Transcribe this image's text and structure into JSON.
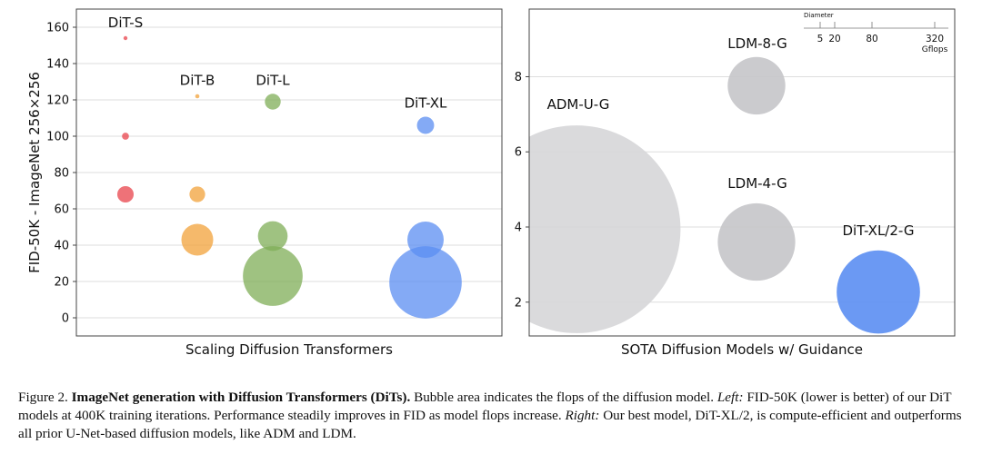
{
  "chart_data": [
    {
      "type": "scatter",
      "subtype": "bubble",
      "xlabel": "Scaling Diffusion Transformers",
      "ylabel": "FID-50K - ImageNet 256×256",
      "ylim": [
        -10,
        170
      ],
      "yticks": [
        0,
        20,
        40,
        60,
        80,
        100,
        120,
        140,
        160
      ],
      "grid": true,
      "series": [
        {
          "name": "DiT-S",
          "color": "#e8434b",
          "points": [
            {
              "y": 154,
              "gflops": 0.1
            },
            {
              "y": 100,
              "gflops": 1.1
            },
            {
              "y": 68,
              "gflops": 6.1
            }
          ]
        },
        {
          "name": "DiT-B",
          "color": "#f2a23a",
          "points": [
            {
              "y": 122,
              "gflops": 0.4
            },
            {
              "y": 68,
              "gflops": 5.6
            },
            {
              "y": 43,
              "gflops": 23
            }
          ]
        },
        {
          "name": "DiT-L",
          "color": "#7fae57",
          "points": [
            {
              "y": 119,
              "gflops": 5.7
            },
            {
              "y": 45,
              "gflops": 20
            },
            {
              "y": 23,
              "gflops": 81
            }
          ]
        },
        {
          "name": "DiT-XL",
          "color": "#5b8ef2",
          "points": [
            {
              "y": 106,
              "gflops": 6.7
            },
            {
              "y": 43,
              "gflops": 30
            },
            {
              "y": 19.5,
              "gflops": 119
            }
          ]
        }
      ]
    },
    {
      "type": "scatter",
      "subtype": "bubble",
      "xlabel": "SOTA Diffusion Models w/ Guidance",
      "ylabel": "",
      "ylim": [
        1.1,
        9.8
      ],
      "yticks": [
        2,
        4,
        6,
        8
      ],
      "grid": true,
      "points": [
        {
          "label": "ADM-U-G",
          "y": 3.94,
          "gflops": 742,
          "color": "#d6d6d8"
        },
        {
          "label": "LDM-8-G",
          "y": 7.76,
          "gflops": 57,
          "color": "#c5c5c9"
        },
        {
          "label": "LDM-4-G",
          "y": 3.6,
          "gflops": 103,
          "color": "#c5c5c9"
        },
        {
          "label": "DiT-XL/2-G",
          "y": 2.27,
          "gflops": 119,
          "color": "#5b8ef2"
        }
      ],
      "size_legend": {
        "title": "Diameter",
        "ticks": [
          "5",
          "20",
          "80",
          "320"
        ],
        "unit": "Gflops"
      }
    }
  ],
  "caption": {
    "fig_label": "Figure 2.",
    "bold": "ImageNet generation with Diffusion Transformers (DiTs).",
    "text1": "Bubble area indicates the flops of the diffusion model.",
    "left_label": "Left:",
    "text2": "FID-50K (lower is better) of our DiT models at 400K training iterations. Performance steadily improves in FID as model flops increase.",
    "right_label": "Right:",
    "text3": "Our best model, DiT-XL/2, is compute-efficient and outperforms all prior U-Net-based diffusion models, like ADM and LDM."
  }
}
